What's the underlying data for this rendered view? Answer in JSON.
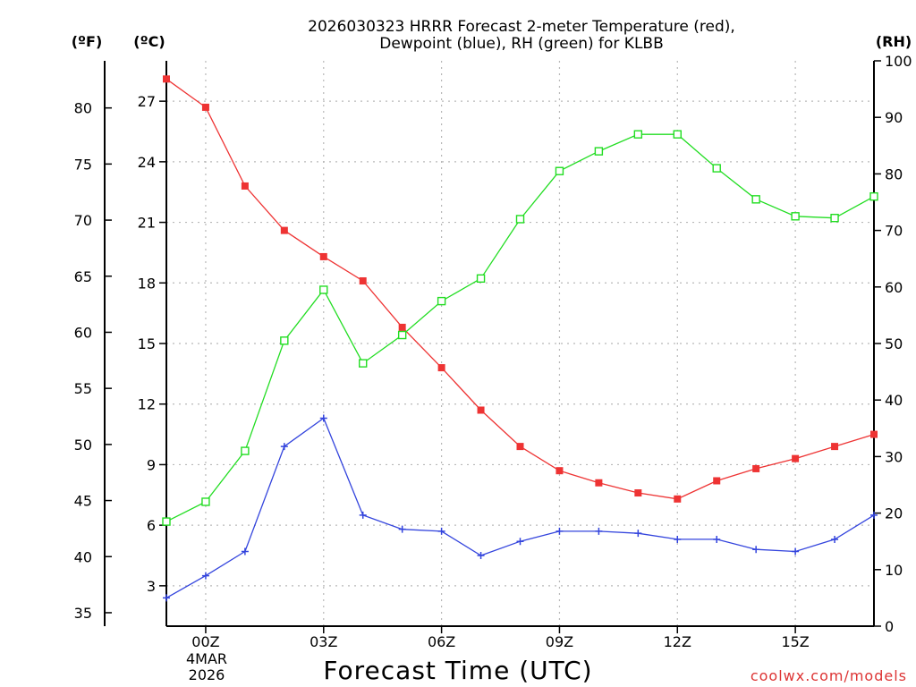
{
  "chart_data": {
    "type": "line",
    "title_line1": "2026030323 HRRR Forecast 2-meter Temperature (red),",
    "title_line2": "Dewpoint (blue), RH (green) for KLBB",
    "xlabel": "Forecast Time (UTC)",
    "date_line1": "4MAR",
    "date_line2": "2026",
    "credit": "coolwx.com/models",
    "unit_f": "(ºF)",
    "unit_c": "(ºC)",
    "unit_rh": "(RH)",
    "x_hours": [
      -1,
      0,
      1,
      2,
      3,
      4,
      5,
      6,
      7,
      8,
      9,
      10,
      11,
      12,
      13,
      14,
      15,
      16,
      17
    ],
    "xlim": [
      -1,
      17
    ],
    "x_ticks": [
      0,
      3,
      6,
      9,
      12,
      15
    ],
    "x_tick_labels": [
      "00Z",
      "03Z",
      "06Z",
      "09Z",
      "12Z",
      "15Z"
    ],
    "c_lim": [
      1.0,
      29.0
    ],
    "c_ticks": [
      3,
      6,
      9,
      12,
      15,
      18,
      21,
      24,
      27
    ],
    "f_ticks": [
      35,
      40,
      45,
      50,
      55,
      60,
      65,
      70,
      75,
      80
    ],
    "rh_lim": [
      0,
      100
    ],
    "rh_ticks": [
      0,
      10,
      20,
      30,
      40,
      50,
      60,
      70,
      80,
      90,
      100
    ],
    "series": [
      {
        "name": "Temperature",
        "unit": "C",
        "color": "#ee3333",
        "marker": "filled-square",
        "values": [
          28.1,
          26.7,
          22.8,
          20.6,
          19.3,
          18.1,
          15.8,
          13.8,
          11.7,
          9.9,
          8.7,
          8.1,
          7.6,
          7.3,
          8.2,
          8.8,
          9.3,
          9.9,
          10.5
        ]
      },
      {
        "name": "Dewpoint",
        "unit": "C",
        "color": "#3344dd",
        "marker": "plus",
        "values": [
          2.4,
          3.5,
          4.7,
          9.9,
          11.3,
          6.5,
          5.8,
          5.7,
          4.5,
          5.2,
          5.7,
          5.7,
          5.6,
          5.3,
          5.3,
          4.8,
          4.7,
          5.3,
          6.5
        ]
      },
      {
        "name": "RH",
        "unit": "%",
        "color": "#22dd22",
        "marker": "open-square",
        "values": [
          18.5,
          22.0,
          31.0,
          50.5,
          59.5,
          46.5,
          51.5,
          57.5,
          61.5,
          72.0,
          80.5,
          84.0,
          87.0,
          87.0,
          81.0,
          75.5,
          72.5,
          72.2,
          76.0
        ]
      }
    ]
  }
}
